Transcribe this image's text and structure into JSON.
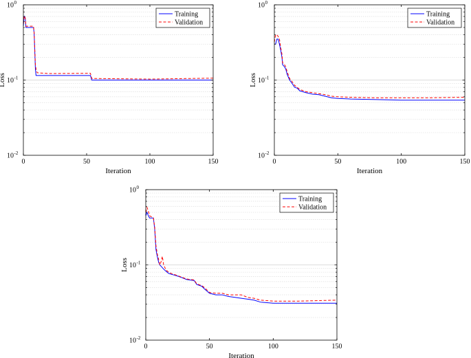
{
  "chart_data": [
    {
      "type": "line",
      "title": "",
      "xlabel": "Iteration",
      "ylabel": "Loss",
      "xlim": [
        0,
        150
      ],
      "ylim": [
        0.01,
        1
      ],
      "yscale": "log",
      "grid": "y-major-and-minor",
      "legend_position": "top-right",
      "x_ticks": [
        "0",
        "50",
        "100",
        "150"
      ],
      "y_ticks": [
        {
          "base": "10",
          "exp": "-2"
        },
        {
          "base": "10",
          "exp": "-1"
        },
        {
          "base": "10",
          "exp": "0"
        }
      ],
      "series": [
        {
          "name": "Training",
          "color": "#0000ff",
          "dash": "solid",
          "points": [
            [
              0,
              0.52
            ],
            [
              0.5,
              0.66
            ],
            [
              1,
              0.7
            ],
            [
              1.5,
              0.66
            ],
            [
              2,
              0.5
            ],
            [
              8,
              0.5
            ],
            [
              8.5,
              0.42
            ],
            [
              9.5,
              0.14
            ],
            [
              10,
              0.115
            ],
            [
              12,
              0.115
            ],
            [
              52,
              0.115
            ],
            [
              53,
              0.115
            ],
            [
              54,
              0.1
            ],
            [
              60,
              0.1
            ],
            [
              100,
              0.1
            ],
            [
              150,
              0.1
            ]
          ]
        },
        {
          "name": "Validation",
          "color": "#ff0000",
          "dash": "dashed",
          "points": [
            [
              0,
              0.56
            ],
            [
              0.5,
              0.7
            ],
            [
              1,
              0.71
            ],
            [
              1.5,
              0.66
            ],
            [
              2,
              0.52
            ],
            [
              8,
              0.52
            ],
            [
              8.5,
              0.43
            ],
            [
              9.5,
              0.16
            ],
            [
              10,
              0.14
            ],
            [
              10.5,
              0.13
            ],
            [
              11,
              0.125
            ],
            [
              20,
              0.122
            ],
            [
              52,
              0.123
            ],
            [
              53,
              0.123
            ],
            [
              54,
              0.105
            ],
            [
              100,
              0.103
            ],
            [
              150,
              0.106
            ]
          ]
        }
      ]
    },
    {
      "type": "line",
      "title": "",
      "xlabel": "Iteration",
      "ylabel": "Loss",
      "xlim": [
        0,
        150
      ],
      "ylim": [
        0.01,
        1
      ],
      "yscale": "log",
      "grid": "y-major-and-minor",
      "legend_position": "top-right",
      "x_ticks": [
        "0",
        "50",
        "100",
        "150"
      ],
      "y_ticks": [
        {
          "base": "10",
          "exp": "-2"
        },
        {
          "base": "10",
          "exp": "-1"
        },
        {
          "base": "10",
          "exp": "0"
        }
      ],
      "series": [
        {
          "name": "Training",
          "color": "#0000ff",
          "dash": "solid",
          "points": [
            [
              0,
              0.3
            ],
            [
              1,
              0.3
            ],
            [
              2,
              0.35
            ],
            [
              3,
              0.35
            ],
            [
              4,
              0.3
            ],
            [
              5,
              0.25
            ],
            [
              6,
              0.2
            ],
            [
              6.5,
              0.16
            ],
            [
              8,
              0.15
            ],
            [
              9,
              0.14
            ],
            [
              10,
              0.12
            ],
            [
              12,
              0.1
            ],
            [
              14,
              0.09
            ],
            [
              16,
              0.08
            ],
            [
              18,
              0.078
            ],
            [
              20,
              0.072
            ],
            [
              25,
              0.068
            ],
            [
              30,
              0.065
            ],
            [
              35,
              0.064
            ],
            [
              40,
              0.061
            ],
            [
              45,
              0.058
            ],
            [
              50,
              0.057
            ],
            [
              60,
              0.056
            ],
            [
              80,
              0.055
            ],
            [
              100,
              0.054
            ],
            [
              120,
              0.054
            ],
            [
              150,
              0.054
            ]
          ]
        },
        {
          "name": "Validation",
          "color": "#ff0000",
          "dash": "dashed",
          "points": [
            [
              0,
              0.32
            ],
            [
              1,
              0.4
            ],
            [
              2,
              0.4
            ],
            [
              3,
              0.38
            ],
            [
              4,
              0.35
            ],
            [
              5,
              0.27
            ],
            [
              6,
              0.22
            ],
            [
              6.5,
              0.17
            ],
            [
              8,
              0.16
            ],
            [
              9,
              0.15
            ],
            [
              10,
              0.13
            ],
            [
              12,
              0.105
            ],
            [
              14,
              0.095
            ],
            [
              16,
              0.085
            ],
            [
              18,
              0.08
            ],
            [
              20,
              0.075
            ],
            [
              25,
              0.07
            ],
            [
              30,
              0.068
            ],
            [
              35,
              0.066
            ],
            [
              40,
              0.064
            ],
            [
              45,
              0.061
            ],
            [
              50,
              0.06
            ],
            [
              60,
              0.059
            ],
            [
              80,
              0.058
            ],
            [
              100,
              0.058
            ],
            [
              120,
              0.058
            ],
            [
              150,
              0.059
            ]
          ]
        }
      ]
    },
    {
      "type": "line",
      "title": "",
      "xlabel": "Iteration",
      "ylabel": "Loss",
      "xlim": [
        0,
        150
      ],
      "ylim": [
        0.01,
        1
      ],
      "yscale": "log",
      "grid": "y-major-and-minor",
      "legend_position": "top-right",
      "x_ticks": [
        "0",
        "50",
        "100",
        "150"
      ],
      "y_ticks": [
        {
          "base": "10",
          "exp": "-2"
        },
        {
          "base": "10",
          "exp": "-1"
        },
        {
          "base": "10",
          "exp": "0"
        }
      ],
      "series": [
        {
          "name": "Training",
          "color": "#0000ff",
          "dash": "solid",
          "points": [
            [
              0,
              0.45
            ],
            [
              1,
              0.5
            ],
            [
              2,
              0.45
            ],
            [
              3,
              0.42
            ],
            [
              6,
              0.42
            ],
            [
              7,
              0.3
            ],
            [
              8,
              0.16
            ],
            [
              9,
              0.13
            ],
            [
              10,
              0.11
            ],
            [
              11,
              0.1
            ],
            [
              12,
              0.096
            ],
            [
              14,
              0.088
            ],
            [
              16,
              0.082
            ],
            [
              18,
              0.077
            ],
            [
              20,
              0.075
            ],
            [
              24,
              0.072
            ],
            [
              28,
              0.068
            ],
            [
              32,
              0.064
            ],
            [
              38,
              0.062
            ],
            [
              40,
              0.055
            ],
            [
              44,
              0.052
            ],
            [
              46,
              0.048
            ],
            [
              50,
              0.042
            ],
            [
              55,
              0.04
            ],
            [
              60,
              0.04
            ],
            [
              65,
              0.038
            ],
            [
              70,
              0.037
            ],
            [
              75,
              0.036
            ],
            [
              80,
              0.035
            ],
            [
              85,
              0.034
            ],
            [
              90,
              0.032
            ],
            [
              100,
              0.031
            ],
            [
              120,
              0.031
            ],
            [
              150,
              0.031
            ]
          ]
        },
        {
          "name": "Validation",
          "color": "#ff0000",
          "dash": "dashed",
          "points": [
            [
              0,
              0.5
            ],
            [
              1,
              0.58
            ],
            [
              2,
              0.52
            ],
            [
              3,
              0.45
            ],
            [
              6,
              0.42
            ],
            [
              7,
              0.32
            ],
            [
              8,
              0.18
            ],
            [
              9,
              0.14
            ],
            [
              10,
              0.12
            ],
            [
              11,
              0.1
            ],
            [
              12,
              0.11
            ],
            [
              13,
              0.13
            ],
            [
              14,
              0.1
            ],
            [
              16,
              0.085
            ],
            [
              18,
              0.08
            ],
            [
              20,
              0.077
            ],
            [
              24,
              0.073
            ],
            [
              28,
              0.069
            ],
            [
              32,
              0.065
            ],
            [
              38,
              0.063
            ],
            [
              40,
              0.056
            ],
            [
              44,
              0.053
            ],
            [
              46,
              0.05
            ],
            [
              50,
              0.043
            ],
            [
              55,
              0.042
            ],
            [
              60,
              0.042
            ],
            [
              65,
              0.04
            ],
            [
              70,
              0.04
            ],
            [
              75,
              0.04
            ],
            [
              80,
              0.037
            ],
            [
              85,
              0.036
            ],
            [
              90,
              0.034
            ],
            [
              100,
              0.033
            ],
            [
              120,
              0.033
            ],
            [
              150,
              0.034
            ]
          ]
        }
      ]
    }
  ]
}
